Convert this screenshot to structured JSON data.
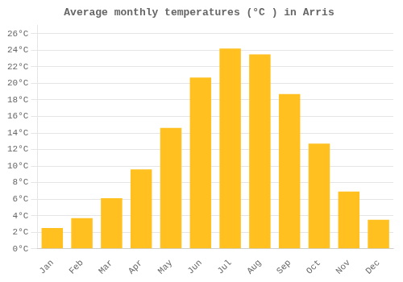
{
  "chart_data": {
    "type": "bar",
    "title": "Average monthly temperatures (°C ) in Arris",
    "categories": [
      "Jan",
      "Feb",
      "Mar",
      "Apr",
      "May",
      "Jun",
      "Jul",
      "Aug",
      "Sep",
      "Oct",
      "Nov",
      "Dec"
    ],
    "values": [
      2.5,
      3.7,
      6.1,
      9.6,
      14.6,
      20.7,
      24.2,
      23.5,
      18.7,
      12.7,
      6.9,
      3.5
    ],
    "color": "#FFC020",
    "ylim": [
      0,
      27
    ],
    "yticks": [
      {
        "value": 0,
        "label": "0°C"
      },
      {
        "value": 2,
        "label": "2°C"
      },
      {
        "value": 4,
        "label": "4°C"
      },
      {
        "value": 6,
        "label": "6°C"
      },
      {
        "value": 8,
        "label": "8°C"
      },
      {
        "value": 10,
        "label": "10°C"
      },
      {
        "value": 12,
        "label": "12°C"
      },
      {
        "value": 14,
        "label": "14°C"
      },
      {
        "value": 16,
        "label": "16°C"
      },
      {
        "value": 18,
        "label": "18°C"
      },
      {
        "value": 20,
        "label": "20°C"
      },
      {
        "value": 22,
        "label": "22°C"
      },
      {
        "value": 24,
        "label": "24°C"
      },
      {
        "value": 26,
        "label": "26°C"
      }
    ],
    "grid": true
  }
}
